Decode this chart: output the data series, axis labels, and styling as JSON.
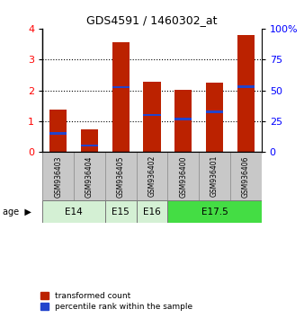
{
  "title": "GDS4591 / 1460302_at",
  "samples": [
    "GSM936403",
    "GSM936404",
    "GSM936405",
    "GSM936402",
    "GSM936400",
    "GSM936401",
    "GSM936406"
  ],
  "red_values": [
    1.37,
    0.73,
    3.57,
    2.28,
    2.03,
    2.24,
    3.78
  ],
  "blue_pct": [
    15,
    5.5,
    52.5,
    30,
    26.75,
    32.5,
    53
  ],
  "ylim_left": [
    0,
    4
  ],
  "ylim_right": [
    0,
    100
  ],
  "yticks_left": [
    0,
    1,
    2,
    3,
    4
  ],
  "yticks_right": [
    0,
    25,
    50,
    75,
    100
  ],
  "bar_width": 0.55,
  "red_color": "#bb2200",
  "blue_color": "#2244cc",
  "bg_sample": "#c8c8c8",
  "age_group_spans": [
    {
      "label": "E14",
      "start": 0,
      "end": 2,
      "color": "#d4f0d4"
    },
    {
      "label": "E15",
      "start": 2,
      "end": 3,
      "color": "#d4f0d4"
    },
    {
      "label": "E16",
      "start": 3,
      "end": 4,
      "color": "#d4f0d4"
    },
    {
      "label": "E17.5",
      "start": 4,
      "end": 7,
      "color": "#44dd44"
    }
  ],
  "legend_red": "transformed count",
  "legend_blue": "percentile rank within the sample",
  "age_label": "age",
  "figsize": [
    3.38,
    3.54
  ],
  "dpi": 100
}
